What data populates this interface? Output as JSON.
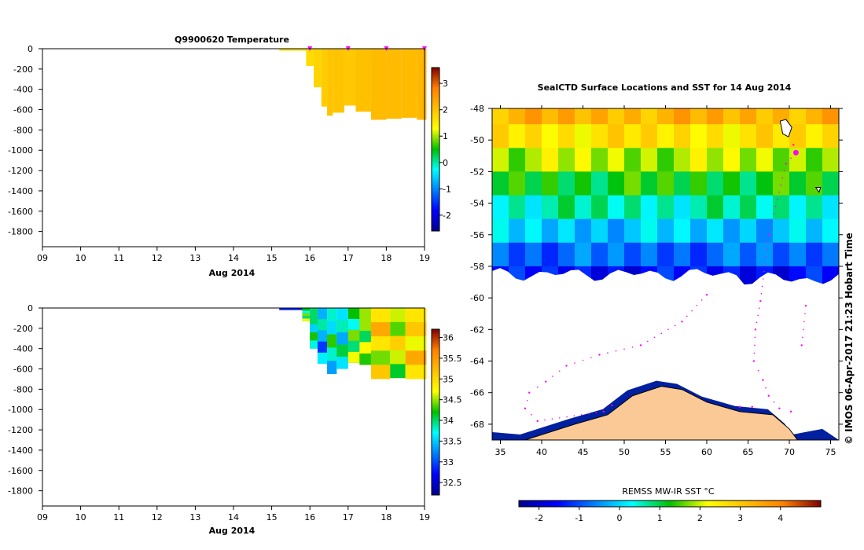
{
  "chart_data": [
    {
      "id": "temperature-profile",
      "type": "heatmap",
      "title": "Q9900620  Temperature",
      "xlabel": "Aug 2014",
      "x_ticks": [
        "09",
        "10",
        "11",
        "12",
        "13",
        "14",
        "15",
        "16",
        "17",
        "18",
        "19"
      ],
      "y_ticks": [
        "0",
        "-200",
        "-400",
        "-600",
        "-800",
        "-1000",
        "-1200",
        "-1400",
        "-1600",
        "-1800"
      ],
      "xlim": [
        9,
        19
      ],
      "ylim": [
        -1950,
        0
      ],
      "profile_markers": [
        16,
        17,
        18,
        19
      ],
      "columns": [
        {
          "x0": 15.2,
          "x1": 15.9,
          "depth": -20,
          "value": 1.6
        },
        {
          "x0": 15.9,
          "x1": 16.1,
          "depth": -170,
          "value": 1.7
        },
        {
          "x0": 16.1,
          "x1": 16.3,
          "depth": -380,
          "value": 1.8
        },
        {
          "x0": 16.3,
          "x1": 16.45,
          "depth": -570,
          "value": 1.9
        },
        {
          "x0": 16.45,
          "x1": 16.6,
          "depth": -660,
          "value": 2.0
        },
        {
          "x0": 16.6,
          "x1": 16.9,
          "depth": -630,
          "value": 2.0
        },
        {
          "x0": 16.9,
          "x1": 17.2,
          "depth": -560,
          "value": 1.95
        },
        {
          "x0": 17.2,
          "x1": 17.6,
          "depth": -620,
          "value": 2.05
        },
        {
          "x0": 17.6,
          "x1": 18.0,
          "depth": -700,
          "value": 2.1
        },
        {
          "x0": 18.0,
          "x1": 18.4,
          "depth": -690,
          "value": 2.1
        },
        {
          "x0": 18.4,
          "x1": 18.8,
          "depth": -680,
          "value": 2.1
        },
        {
          "x0": 18.8,
          "x1": 19.05,
          "depth": -700,
          "value": 2.15
        }
      ],
      "colorbar": {
        "min": -2.6,
        "max": 3.6,
        "ticks": [
          "3",
          "2",
          "1",
          "0",
          "-1",
          "-2"
        ],
        "tick_values": [
          3,
          2,
          1,
          0,
          -1,
          -2
        ]
      }
    },
    {
      "id": "salinity-profile",
      "type": "heatmap",
      "title": "",
      "xlabel": "Aug 2014",
      "x_ticks": [
        "09",
        "10",
        "11",
        "12",
        "13",
        "14",
        "15",
        "16",
        "17",
        "18",
        "19"
      ],
      "y_ticks": [
        "0",
        "-200",
        "-400",
        "-600",
        "-800",
        "-1000",
        "-1200",
        "-1400",
        "-1600",
        "-1800"
      ],
      "xlim": [
        9,
        19
      ],
      "ylim": [
        -1950,
        0
      ],
      "columns": [
        {
          "x0": 15.2,
          "x1": 15.8,
          "depth": -20,
          "value": 32.6
        },
        {
          "x0": 15.8,
          "x1": 16.0,
          "depth": -130,
          "value": 34.2
        },
        {
          "x0": 16.0,
          "x1": 16.2,
          "depth": -400,
          "value": 34.0
        },
        {
          "x0": 16.2,
          "x1": 16.45,
          "depth": -550,
          "value": 33.4
        },
        {
          "x0": 16.45,
          "x1": 16.7,
          "depth": -650,
          "value": 33.8
        },
        {
          "x0": 16.7,
          "x1": 17.0,
          "depth": -600,
          "value": 33.6
        },
        {
          "x0": 17.0,
          "x1": 17.3,
          "depth": -540,
          "value": 34.2
        },
        {
          "x0": 17.3,
          "x1": 17.6,
          "depth": -560,
          "value": 34.5
        },
        {
          "x0": 17.6,
          "x1": 18.1,
          "depth": -700,
          "value": 34.9
        },
        {
          "x0": 18.1,
          "x1": 18.5,
          "depth": -690,
          "value": 34.6
        },
        {
          "x0": 18.5,
          "x1": 19.05,
          "depth": -700,
          "value": 34.9
        }
      ],
      "colorbar": {
        "min": 32.2,
        "max": 36.2,
        "ticks": [
          "36",
          "35.5",
          "35",
          "34.5",
          "34",
          "33.5",
          "33",
          "32.5"
        ],
        "tick_values": [
          36,
          35.5,
          35,
          34.5,
          34,
          33.5,
          33,
          32.5
        ]
      }
    },
    {
      "id": "sst-map",
      "type": "heatmap",
      "title": "SealCTD Surface Locations and SST for 14 Aug 2014",
      "x_ticks": [
        "35",
        "40",
        "45",
        "50",
        "55",
        "60",
        "65",
        "70",
        "75"
      ],
      "y_ticks": [
        "-48",
        "-50",
        "-52",
        "-54",
        "-56",
        "-58",
        "-60",
        "-62",
        "-64",
        "-66",
        "-68"
      ],
      "xlim": [
        34,
        76
      ],
      "ylim": [
        -69,
        -48
      ],
      "ice_edge_latitude": -58.5,
      "antarctica_coast_peak": [
        54.5,
        -65.6
      ],
      "sst_bands": [
        {
          "lat_top": -48,
          "lat_bottom": -49,
          "value": 3.3
        },
        {
          "lat_top": -49,
          "lat_bottom": -50.5,
          "value": 2.6
        },
        {
          "lat_top": -50.5,
          "lat_bottom": -52,
          "value": 1.9
        },
        {
          "lat_top": -52,
          "lat_bottom": -53.5,
          "value": 1.2
        },
        {
          "lat_top": -53.5,
          "lat_bottom": -55,
          "value": 0.6
        },
        {
          "lat_top": -55,
          "lat_bottom": -56.5,
          "value": -0.1
        },
        {
          "lat_top": -56.5,
          "lat_bottom": -58,
          "value": -0.8
        },
        {
          "lat_top": -58,
          "lat_bottom": -59.2,
          "value": -1.5
        }
      ],
      "track_points": [
        [
          70.5,
          -50.3
        ],
        [
          70.8,
          -50.8
        ],
        [
          69.6,
          -51.5
        ],
        [
          67.5,
          -56.0
        ],
        [
          66.5,
          -60.2
        ],
        [
          65.9,
          -62.0
        ],
        [
          65.7,
          -64.0
        ],
        [
          66.8,
          -65.2
        ],
        [
          67.5,
          -66.2
        ],
        [
          68.8,
          -67.0
        ],
        [
          70.2,
          -67.2
        ],
        [
          72.0,
          -60.5
        ],
        [
          71.5,
          -63.0
        ],
        [
          60.0,
          -59.8
        ],
        [
          57.0,
          -61.5
        ],
        [
          52.0,
          -63.0
        ],
        [
          47.0,
          -63.6
        ],
        [
          43.0,
          -64.3
        ],
        [
          40.5,
          -65.3
        ],
        [
          38.5,
          -66.0
        ],
        [
          38.0,
          -67.0
        ],
        [
          39.5,
          -67.8
        ],
        [
          47.5,
          -67.2
        ],
        [
          48.5,
          -66.8
        ],
        [
          64.0,
          -66.9
        ],
        [
          65.5,
          -66.9
        ]
      ],
      "colorbar_label": "REMSS MW-IR SST °C",
      "colorbar": {
        "min": -2.5,
        "max": 5,
        "ticks": [
          "-2",
          "-1",
          "0",
          "1",
          "2",
          "3",
          "4"
        ],
        "tick_values": [
          -2,
          -1,
          0,
          1,
          2,
          3,
          4
        ]
      }
    }
  ],
  "footer": {
    "credit": "© IMOS 06-Apr-2017 21:23 Hobart Time"
  },
  "colors": {
    "ocean_empty": "#ffffff",
    "land": "#fbc995",
    "marker": "#ff00ff"
  }
}
